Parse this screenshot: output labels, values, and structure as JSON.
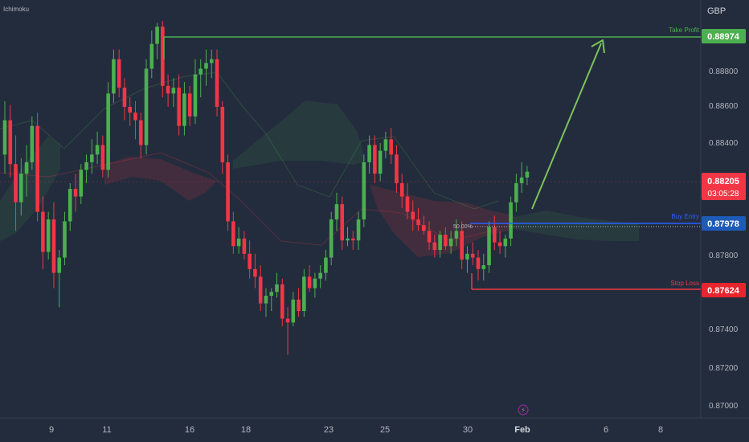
{
  "indicator_label": "Ichimoku",
  "currency_label": "GBP",
  "price_ticks": [
    "0.88800",
    "0.88600",
    "0.88400",
    "0.87800",
    "0.87400",
    "0.87200",
    "0.87000"
  ],
  "date_ticks": [
    "9",
    "11",
    "16",
    "18",
    "23",
    "25",
    "30",
    "Feb",
    "6",
    "8"
  ],
  "levels": {
    "take_profit": {
      "label": "Take Profit",
      "price": "0.88974",
      "color": "#4caf50"
    },
    "entry": {
      "label": "Buy Entry",
      "price": "0.87978",
      "color": "#2962ff"
    },
    "stop_loss": {
      "label": "Stop Loss",
      "price": "0.87624",
      "color": "#f23645"
    }
  },
  "current": {
    "price": "0.88205",
    "countdown": "03:05:28",
    "color": "#f23645"
  },
  "fib_label": "50.00%",
  "colors": {
    "background": "#232c3d",
    "up": "#4caf50",
    "down": "#f23645",
    "text": "#b2b5be"
  },
  "chart_data": {
    "type": "candlestick",
    "indicator": "Ichimoku",
    "y_unit": "GBP",
    "ylim": [
      0.8692,
      0.8911
    ],
    "x_ticks": [
      "9",
      "11",
      "16",
      "18",
      "23",
      "25",
      "30",
      "Feb",
      "6",
      "8"
    ],
    "take_profit": 0.88974,
    "entry": 0.87978,
    "stop_loss": 0.87624,
    "last_price": 0.88205,
    "fib_retracement": "50.00%",
    "ohlc": [
      [
        0.883,
        0.8858,
        0.882,
        0.8848
      ],
      [
        0.8848,
        0.8856,
        0.8818,
        0.8825
      ],
      [
        0.8825,
        0.884,
        0.879,
        0.8805
      ],
      [
        0.8805,
        0.8828,
        0.8798,
        0.882
      ],
      [
        0.882,
        0.8835,
        0.8808,
        0.8826
      ],
      [
        0.8826,
        0.885,
        0.8822,
        0.8845
      ],
      [
        0.8845,
        0.8852,
        0.8795,
        0.88
      ],
      [
        0.88,
        0.8808,
        0.877,
        0.8779
      ],
      [
        0.8779,
        0.88,
        0.8775,
        0.8796
      ],
      [
        0.8796,
        0.8805,
        0.876,
        0.8768
      ],
      [
        0.8768,
        0.878,
        0.875,
        0.8776
      ],
      [
        0.8776,
        0.88,
        0.8772,
        0.8795
      ],
      [
        0.8795,
        0.8815,
        0.879,
        0.8812
      ],
      [
        0.8812,
        0.882,
        0.88,
        0.8808
      ],
      [
        0.8808,
        0.8825,
        0.8804,
        0.8822
      ],
      [
        0.8822,
        0.883,
        0.8815,
        0.8826
      ],
      [
        0.8826,
        0.8838,
        0.882,
        0.883
      ],
      [
        0.883,
        0.8842,
        0.8825,
        0.8835
      ],
      [
        0.8835,
        0.884,
        0.8818,
        0.8822
      ],
      [
        0.8822,
        0.8868,
        0.8818,
        0.8862
      ],
      [
        0.8862,
        0.8885,
        0.8857,
        0.888
      ],
      [
        0.888,
        0.8885,
        0.886,
        0.8865
      ],
      [
        0.8865,
        0.887,
        0.8848,
        0.8855
      ],
      [
        0.8855,
        0.886,
        0.8845,
        0.8852
      ],
      [
        0.8852,
        0.8858,
        0.8838,
        0.8848
      ],
      [
        0.8848,
        0.8852,
        0.8828,
        0.8835
      ],
      [
        0.8835,
        0.888,
        0.883,
        0.8875
      ],
      [
        0.8875,
        0.8895,
        0.887,
        0.8888
      ],
      [
        0.8888,
        0.8899,
        0.888,
        0.8897
      ],
      [
        0.8897,
        0.89,
        0.886,
        0.8866
      ],
      [
        0.8866,
        0.8872,
        0.8855,
        0.8862
      ],
      [
        0.8862,
        0.887,
        0.8855,
        0.8865
      ],
      [
        0.8865,
        0.8872,
        0.884,
        0.8845
      ],
      [
        0.8845,
        0.8868,
        0.884,
        0.8862
      ],
      [
        0.8862,
        0.8866,
        0.8845,
        0.885
      ],
      [
        0.885,
        0.888,
        0.8846,
        0.8872
      ],
      [
        0.8872,
        0.888,
        0.886,
        0.8875
      ],
      [
        0.8875,
        0.8885,
        0.8866,
        0.8878
      ],
      [
        0.8878,
        0.8885,
        0.887,
        0.888
      ],
      [
        0.888,
        0.8885,
        0.885,
        0.8855
      ],
      [
        0.8855,
        0.8858,
        0.882,
        0.8826
      ],
      [
        0.8826,
        0.883,
        0.879,
        0.8795
      ],
      [
        0.8795,
        0.88,
        0.8778,
        0.8782
      ],
      [
        0.8782,
        0.8792,
        0.8778,
        0.8786
      ],
      [
        0.8786,
        0.879,
        0.8775,
        0.8778
      ],
      [
        0.8778,
        0.8785,
        0.8765,
        0.877
      ],
      [
        0.877,
        0.8778,
        0.876,
        0.8766
      ],
      [
        0.8766,
        0.8772,
        0.8748,
        0.8752
      ],
      [
        0.8752,
        0.876,
        0.8745,
        0.8756
      ],
      [
        0.8756,
        0.876,
        0.8748,
        0.8758
      ],
      [
        0.8758,
        0.8768,
        0.8755,
        0.8762
      ],
      [
        0.8762,
        0.8765,
        0.874,
        0.8744
      ],
      [
        0.8744,
        0.875,
        0.8725,
        0.8742
      ],
      [
        0.8742,
        0.8758,
        0.874,
        0.8754
      ],
      [
        0.8754,
        0.876,
        0.8745,
        0.8748
      ],
      [
        0.8748,
        0.877,
        0.8745,
        0.8766
      ],
      [
        0.8766,
        0.8772,
        0.8758,
        0.876
      ],
      [
        0.876,
        0.8768,
        0.8755,
        0.8765
      ],
      [
        0.8765,
        0.8772,
        0.876,
        0.8768
      ],
      [
        0.8768,
        0.878,
        0.8764,
        0.8776
      ],
      [
        0.8776,
        0.88,
        0.8772,
        0.8796
      ],
      [
        0.8796,
        0.881,
        0.879,
        0.8804
      ],
      [
        0.8804,
        0.8808,
        0.878,
        0.8785
      ],
      [
        0.8785,
        0.8792,
        0.8782,
        0.8786
      ],
      [
        0.8786,
        0.879,
        0.878,
        0.8785
      ],
      [
        0.8785,
        0.88,
        0.878,
        0.8796
      ],
      [
        0.8796,
        0.883,
        0.8792,
        0.8826
      ],
      [
        0.8826,
        0.884,
        0.882,
        0.8835
      ],
      [
        0.8835,
        0.884,
        0.8815,
        0.882
      ],
      [
        0.882,
        0.8836,
        0.8816,
        0.8832
      ],
      [
        0.8832,
        0.8842,
        0.8828,
        0.8838
      ],
      [
        0.8838,
        0.8844,
        0.8825,
        0.883
      ],
      [
        0.883,
        0.8835,
        0.881,
        0.8815
      ],
      [
        0.8815,
        0.882,
        0.8802,
        0.8808
      ],
      [
        0.8808,
        0.8815,
        0.8796,
        0.88
      ],
      [
        0.88,
        0.8806,
        0.879,
        0.8796
      ],
      [
        0.8796,
        0.8802,
        0.879,
        0.8793
      ],
      [
        0.8793,
        0.8798,
        0.8788,
        0.879
      ],
      [
        0.879,
        0.8795,
        0.878,
        0.8784
      ],
      [
        0.8784,
        0.8788,
        0.8776,
        0.878
      ],
      [
        0.878,
        0.879,
        0.8776,
        0.8788
      ],
      [
        0.8788,
        0.8792,
        0.878,
        0.8782
      ],
      [
        0.8782,
        0.879,
        0.8778,
        0.8786
      ],
      [
        0.8786,
        0.8796,
        0.8782,
        0.879
      ],
      [
        0.879,
        0.8795,
        0.877,
        0.8775
      ],
      [
        0.8775,
        0.8782,
        0.8768,
        0.8778
      ],
      [
        0.8778,
        0.8784,
        0.8772,
        0.8776
      ],
      [
        0.8776,
        0.878,
        0.8764,
        0.877
      ],
      [
        0.877,
        0.8778,
        0.8764,
        0.8772
      ],
      [
        0.8772,
        0.8795,
        0.8768,
        0.8792
      ],
      [
        0.8792,
        0.8798,
        0.878,
        0.8784
      ],
      [
        0.8784,
        0.879,
        0.8778,
        0.8782
      ],
      [
        0.8782,
        0.8788,
        0.8776,
        0.8786
      ],
      [
        0.8786,
        0.8808,
        0.8782,
        0.8805
      ],
      [
        0.8805,
        0.882,
        0.88,
        0.8815
      ],
      [
        0.8815,
        0.8826,
        0.881,
        0.8818
      ],
      [
        0.8818,
        0.8824,
        0.8814,
        0.8821
      ]
    ]
  }
}
